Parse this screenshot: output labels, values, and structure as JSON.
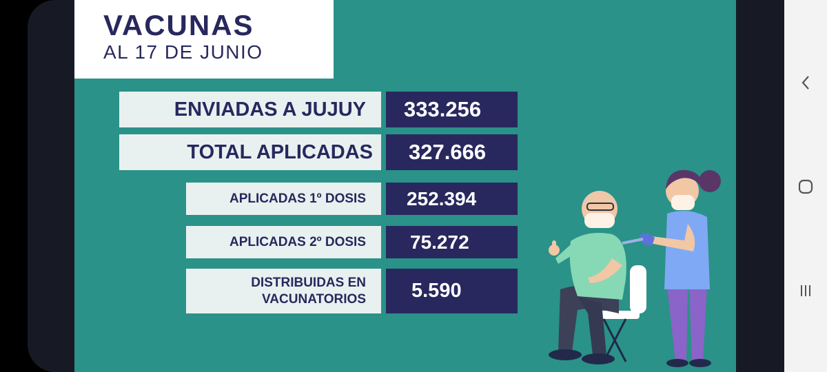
{
  "slide": {
    "title": "VACUNAS",
    "subtitle": "AL 17 DE JUNIO",
    "rows": [
      {
        "label": "ENVIADAS A JUJUY",
        "value": "333.256"
      },
      {
        "label": "TOTAL APLICADAS",
        "value": "327.666"
      },
      {
        "label": "APLICADAS 1º DOSIS",
        "value": "252.394"
      },
      {
        "label": "APLICADAS 2º DOSIS",
        "value": "75.272"
      },
      {
        "label": "DISTRIBUIDAS EN VACUNATORIOS",
        "value": "5.590"
      }
    ],
    "illustration": "nurse-vaccinating-elderly-man"
  },
  "colors": {
    "background": "#2a9288",
    "navy": "#28285e",
    "label_bg": "#e9f1f0"
  },
  "nav_bar": {
    "buttons": [
      "back-icon",
      "home-icon",
      "recents-icon"
    ]
  }
}
